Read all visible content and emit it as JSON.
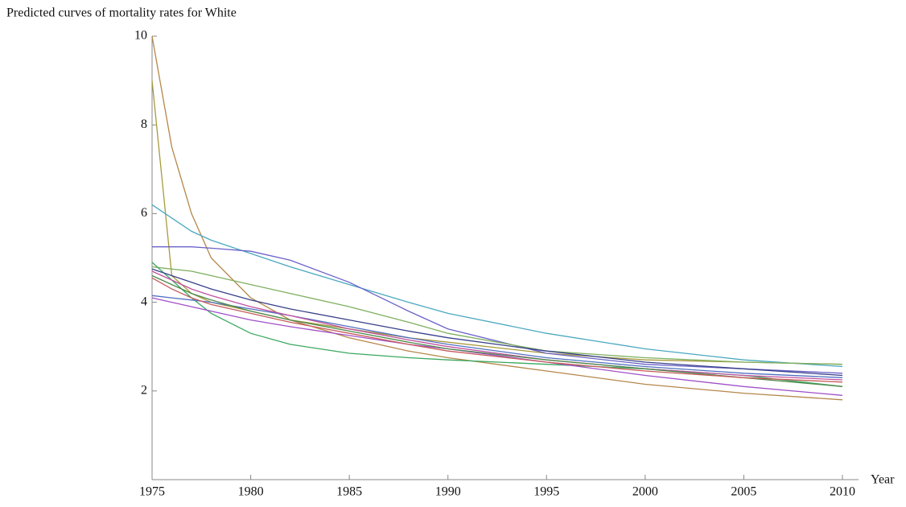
{
  "chart_data": {
    "type": "line",
    "title": "Predicted curves of mortality rates for White",
    "x_label": "Year",
    "x": [
      1975,
      1976,
      1977,
      1978,
      1980,
      1982,
      1985,
      1988,
      1990,
      1995,
      2000,
      2005,
      2010
    ],
    "xlim": [
      1975,
      2010
    ],
    "xticks": [
      1975,
      1980,
      1985,
      1990,
      1995,
      2000,
      2005,
      2010
    ],
    "ylim": [
      0,
      10
    ],
    "yticks": [
      2,
      4,
      6,
      8,
      10
    ],
    "grid": false,
    "series": [
      {
        "color": "#b5874a",
        "values": [
          10,
          7.5,
          6.0,
          5.0,
          4.1,
          3.6,
          3.2,
          2.9,
          2.75,
          2.45,
          2.15,
          1.95,
          1.8
        ]
      },
      {
        "color": "#a89a3c",
        "values": [
          9.0,
          4.6,
          4.2,
          4.0,
          3.8,
          3.6,
          3.4,
          3.2,
          3.1,
          2.85,
          2.7,
          2.65,
          2.6
        ]
      },
      {
        "color": "#4aa8c0",
        "values": [
          6.2,
          5.9,
          5.6,
          5.4,
          5.1,
          4.8,
          4.4,
          4.0,
          3.75,
          3.3,
          2.95,
          2.7,
          2.55
        ]
      },
      {
        "color": "#6a62c8",
        "values": [
          5.25,
          5.25,
          5.25,
          5.22,
          5.15,
          4.95,
          4.45,
          3.8,
          3.4,
          2.85,
          2.6,
          2.5,
          2.4
        ]
      },
      {
        "color": "#7fb060",
        "values": [
          4.8,
          4.75,
          4.7,
          4.6,
          4.4,
          4.2,
          3.9,
          3.55,
          3.3,
          2.9,
          2.75,
          2.65,
          2.6
        ]
      },
      {
        "color": "#3aa860",
        "values": [
          4.9,
          4.5,
          4.1,
          3.75,
          3.3,
          3.05,
          2.85,
          2.75,
          2.7,
          2.6,
          2.5,
          2.35,
          2.1
        ]
      },
      {
        "color": "#a050c8",
        "values": [
          4.1,
          4.0,
          3.9,
          3.8,
          3.6,
          3.45,
          3.25,
          3.05,
          2.95,
          2.65,
          2.35,
          2.1,
          1.9
        ]
      },
      {
        "color": "#5070c0",
        "values": [
          4.15,
          4.1,
          4.05,
          4.0,
          3.85,
          3.7,
          3.45,
          3.2,
          3.05,
          2.75,
          2.55,
          2.4,
          2.3
        ]
      },
      {
        "color": "#c050a0",
        "values": [
          4.7,
          4.5,
          4.3,
          4.15,
          3.9,
          3.7,
          3.4,
          3.15,
          3.0,
          2.7,
          2.5,
          2.35,
          2.25
        ]
      },
      {
        "color": "#4c8a4c",
        "values": [
          4.6,
          4.4,
          4.2,
          4.05,
          3.8,
          3.6,
          3.35,
          3.1,
          2.95,
          2.7,
          2.5,
          2.3,
          2.1
        ]
      },
      {
        "color": "#38408a",
        "values": [
          4.75,
          4.6,
          4.45,
          4.3,
          4.05,
          3.85,
          3.6,
          3.35,
          3.2,
          2.9,
          2.65,
          2.5,
          2.35
        ]
      },
      {
        "color": "#c85a5a",
        "values": [
          4.55,
          4.3,
          4.1,
          3.95,
          3.75,
          3.55,
          3.3,
          3.05,
          2.9,
          2.65,
          2.45,
          2.3,
          2.2
        ]
      }
    ]
  }
}
